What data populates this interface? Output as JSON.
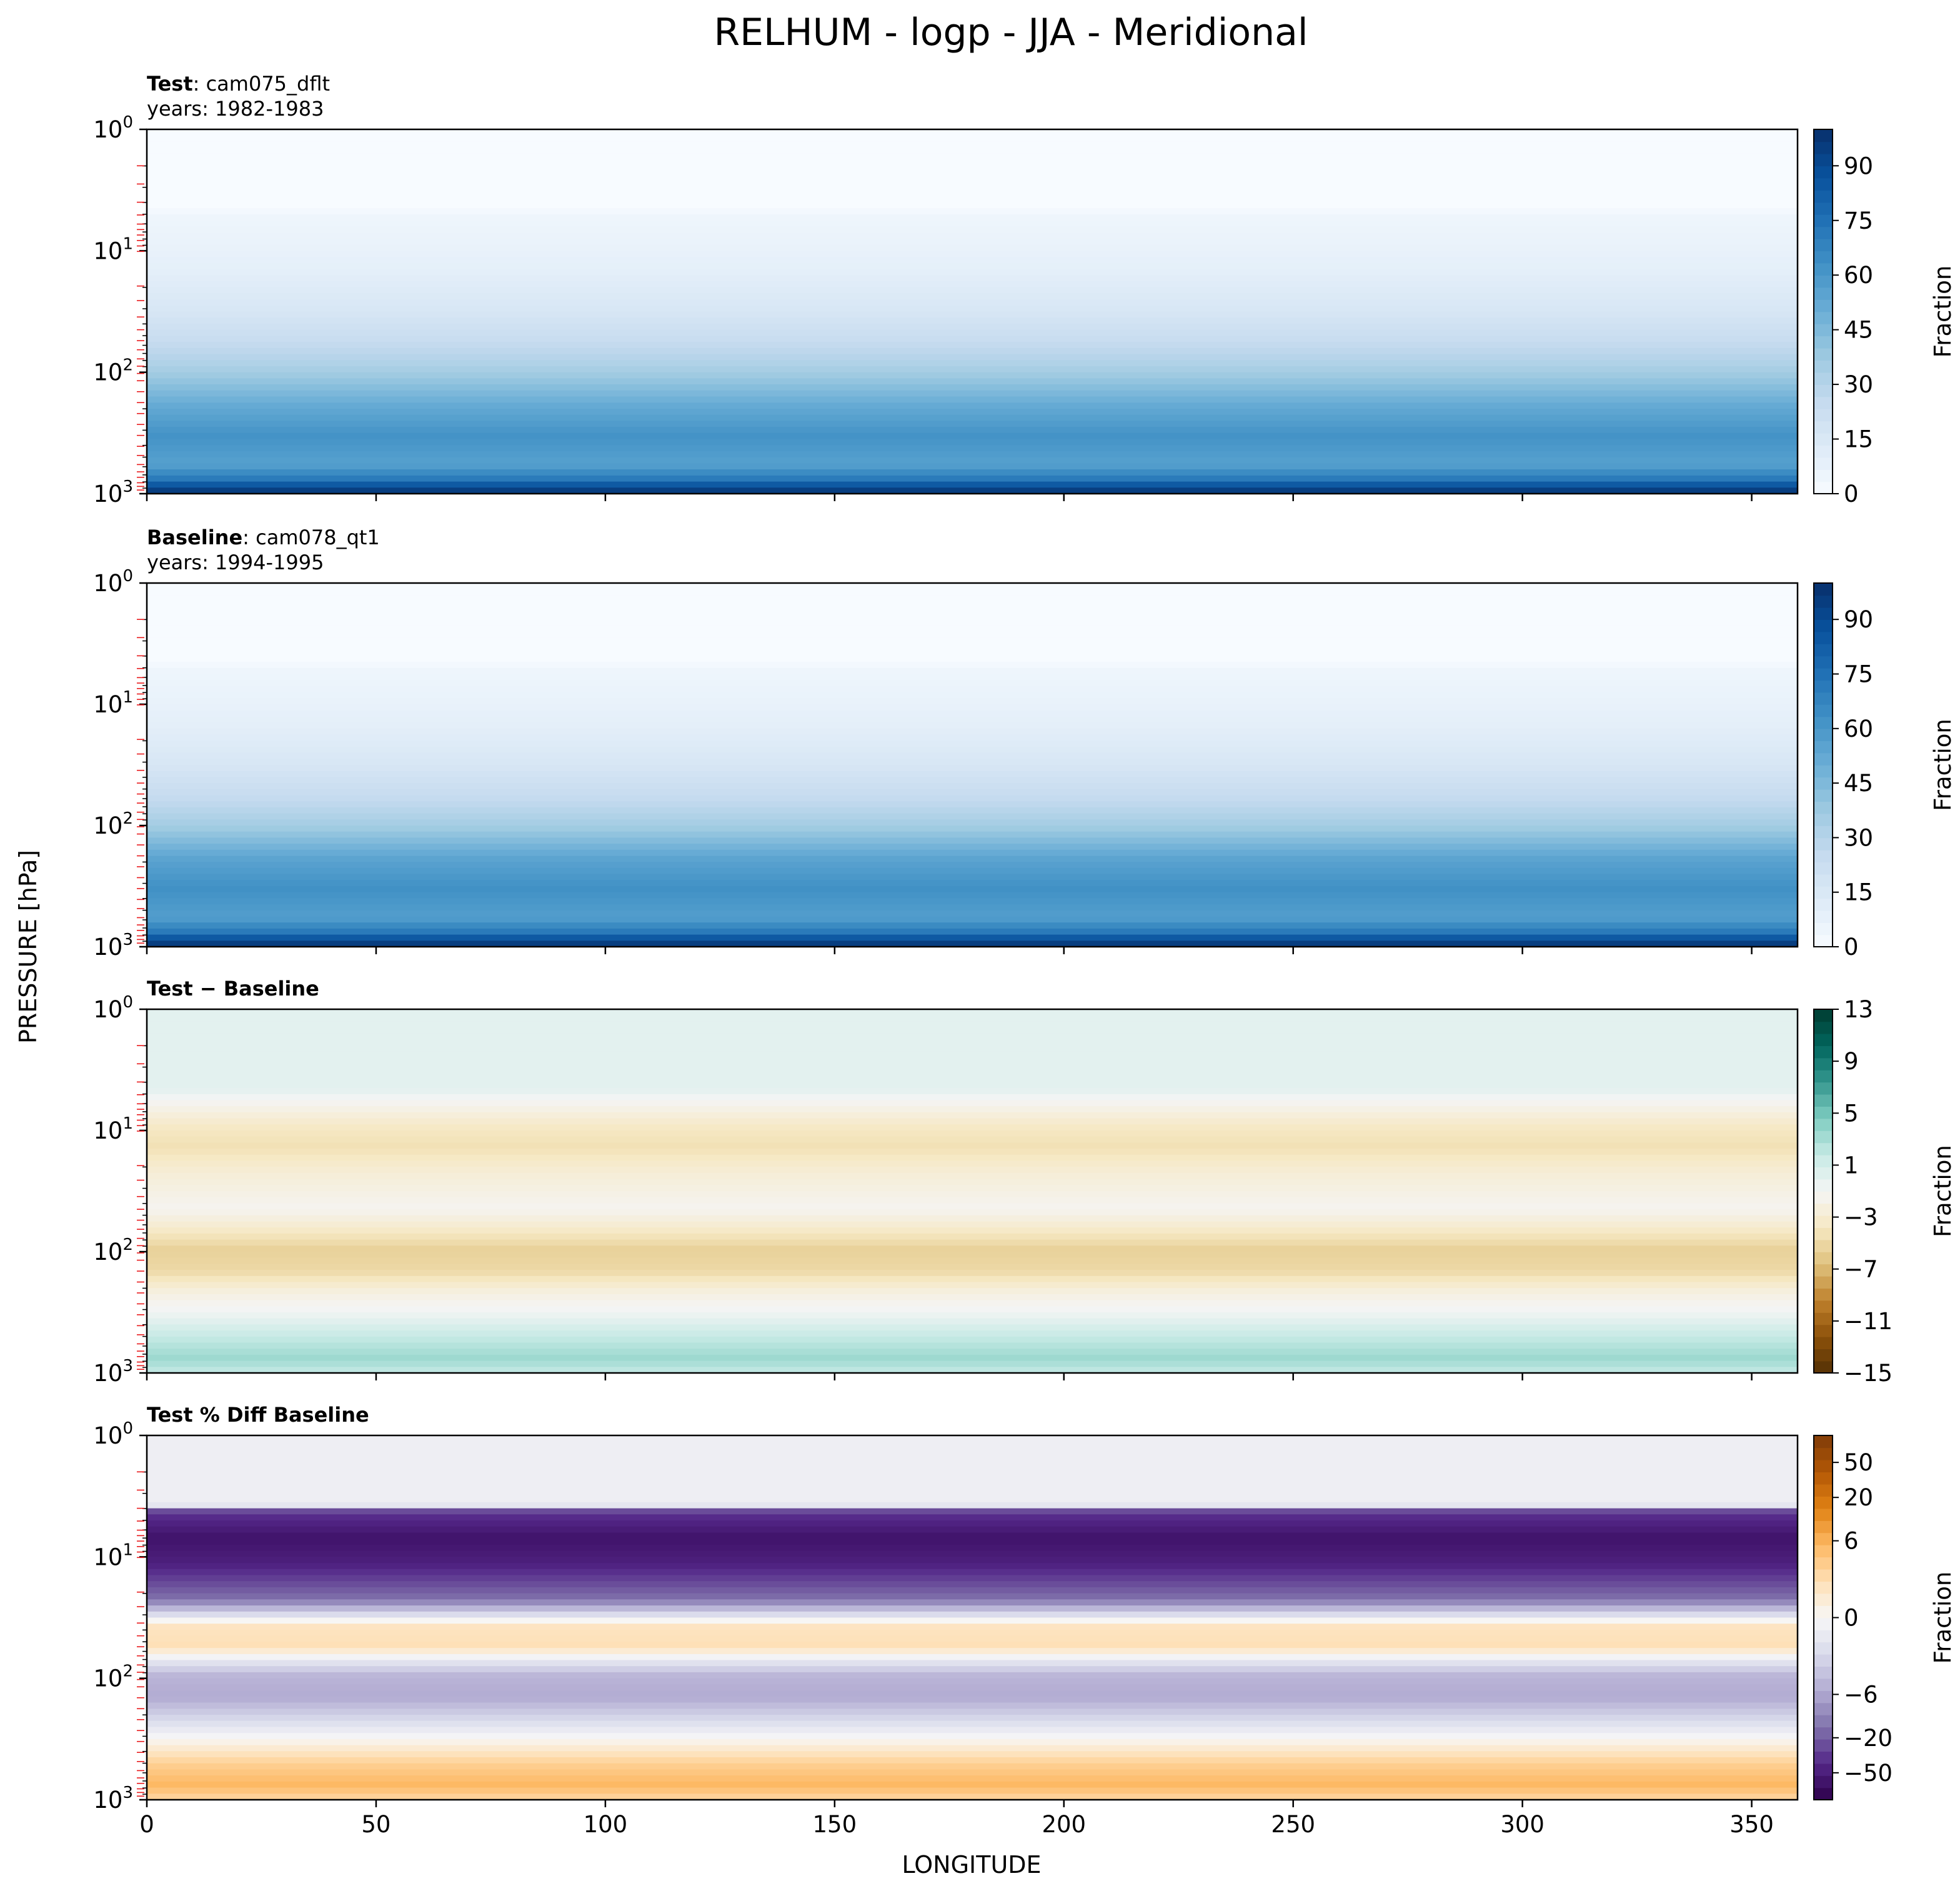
{
  "chart_data": {
    "type": "heatmap",
    "title": "RELHUM - logp - JJA - Meridional",
    "xlabel": "LONGITUDE",
    "ylabel": "PRESSURE [hPa]",
    "xlim": [
      0,
      360
    ],
    "ylim": [
      1000,
      1
    ],
    "yscale": "log",
    "xticks": [
      "0",
      "50",
      "100",
      "150",
      "200",
      "250",
      "300",
      "350"
    ],
    "yticks": [
      {
        "base": "10",
        "exp": "0"
      },
      {
        "base": "10",
        "exp": "1"
      },
      {
        "base": "10",
        "exp": "2"
      },
      {
        "base": "10",
        "exp": "3"
      }
    ],
    "panels": [
      {
        "id": "test",
        "title_bold": "Test",
        "title_rest": ": cam075_dflt",
        "subtitle": "years: 1982-1983",
        "colorbar": {
          "label": "Fraction",
          "ticks": [
            "0",
            "15",
            "30",
            "45",
            "60",
            "75",
            "90"
          ],
          "range": [
            0,
            100
          ],
          "cmap": "Blues"
        }
      },
      {
        "id": "baseline",
        "title_bold": "Baseline",
        "title_rest": ": cam078_qt1",
        "subtitle": "years: 1994-1995",
        "colorbar": {
          "label": "Fraction",
          "ticks": [
            "0",
            "15",
            "30",
            "45",
            "60",
            "75",
            "90"
          ],
          "range": [
            0,
            100
          ],
          "cmap": "Blues"
        }
      },
      {
        "id": "diff",
        "title_bold": "Test − Baseline",
        "title_rest": "",
        "subtitle": "",
        "colorbar": {
          "label": "Fraction",
          "ticks": [
            "−15",
            "−11",
            "−7",
            "−3",
            "1",
            "5",
            "9",
            "13"
          ],
          "range": [
            -15,
            13
          ],
          "cmap": "BrBG"
        }
      },
      {
        "id": "pctdiff",
        "title_bold": "Test % Diff Baseline",
        "title_rest": "",
        "subtitle": "",
        "colorbar": {
          "label": "Fraction",
          "ticks": [
            "−50",
            "−20",
            "−6",
            "0",
            "6",
            "20",
            "50"
          ],
          "range": [
            -100,
            100
          ],
          "cmap": "PuOr"
        }
      }
    ]
  }
}
